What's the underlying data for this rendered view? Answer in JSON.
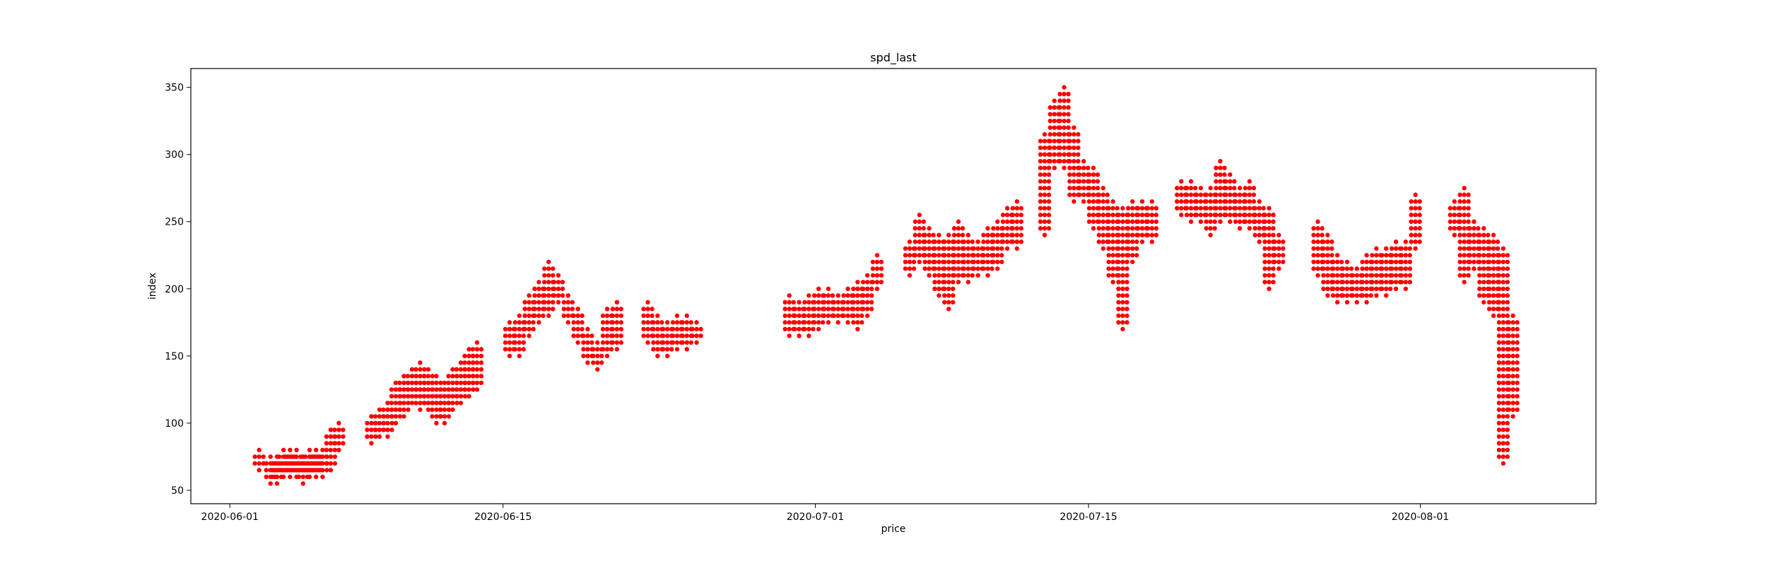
{
  "colors": {
    "marker": "#ff0000",
    "axes": "#000000",
    "background": "#ffffff"
  },
  "chart_data": {
    "type": "scatter",
    "title": "spd_last",
    "xlabel": "price",
    "ylabel": "index",
    "x_is_date": true,
    "xlim": [
      "2020-05-30",
      "2020-08-10"
    ],
    "ylim": [
      40,
      364
    ],
    "x_ticks": [
      "2020-06-01",
      "2020-06-15",
      "2020-07-01",
      "2020-07-15",
      "2020-08-01"
    ],
    "y_ticks": [
      50,
      100,
      150,
      200,
      250,
      300,
      350
    ],
    "x_tick_labels": [
      "2020-06-01",
      "2020-06-15",
      "2020-07-01",
      "2020-07-15",
      "2020-08-01"
    ],
    "y_tick_labels": [
      "50",
      "100",
      "150",
      "200",
      "250",
      "300",
      "350"
    ],
    "grid": false,
    "legend": "none",
    "marker_color": "#ff0000",
    "series": [
      {
        "x": [
          "2020-06-02T12:00",
          "2020-06-03T02:00",
          "2020-06-03T10:00",
          "2020-06-03T18:00",
          "2020-06-04T02:00",
          "2020-06-04T10:00",
          "2020-06-04T18:00",
          "2020-06-05T02:00",
          "2020-06-05T10:00",
          "2020-06-05T18:00",
          "2020-06-06T04:00",
          "2020-06-06T14:00",
          "2020-06-08T06:00",
          "2020-06-08T16:00",
          "2020-06-09T02:00",
          "2020-06-09T12:00",
          "2020-06-09T22:00",
          "2020-06-10T08:00",
          "2020-06-10T18:00",
          "2020-06-11T04:00",
          "2020-06-11T14:00",
          "2020-06-12T00:00",
          "2020-06-12T10:00",
          "2020-06-12T20:00",
          "2020-06-13T06:00",
          "2020-06-13T16:00",
          "2020-06-15T08:00",
          "2020-06-15T20:00",
          "2020-06-16T08:00",
          "2020-06-16T20:00",
          "2020-06-17T08:00",
          "2020-06-17T20:00",
          "2020-06-18T08:00",
          "2020-06-18T20:00",
          "2020-06-19T08:00",
          "2020-06-19T20:00",
          "2020-06-20T08:00",
          "2020-06-20T20:00",
          "2020-06-22T10:00",
          "2020-06-22T22:00",
          "2020-06-23T10:00",
          "2020-06-23T22:00",
          "2020-06-24T10:00",
          "2020-06-24T22:00",
          "2020-06-29T16:00",
          "2020-06-30T04:00",
          "2020-06-30T16:00",
          "2020-07-01T04:00",
          "2020-07-01T16:00",
          "2020-07-02T04:00",
          "2020-07-02T16:00",
          "2020-07-03T04:00",
          "2020-07-03T16:00",
          "2020-07-04T04:00",
          "2020-07-05T20:00",
          "2020-07-06T08:00",
          "2020-07-06T20:00",
          "2020-07-07T08:00",
          "2020-07-07T20:00",
          "2020-07-08T08:00",
          "2020-07-08T20:00",
          "2020-07-09T08:00",
          "2020-07-09T20:00",
          "2020-07-10T08:00",
          "2020-07-10T20:00",
          "2020-07-11T08:00",
          "2020-07-12T18:00",
          "2020-07-13T06:00",
          "2020-07-13T18:00",
          "2020-07-14T06:00",
          "2020-07-14T18:00",
          "2020-07-15T06:00",
          "2020-07-15T18:00",
          "2020-07-16T06:00",
          "2020-07-16T18:00",
          "2020-07-17T06:00",
          "2020-07-17T18:00",
          "2020-07-18T06:00",
          "2020-07-19T18:00",
          "2020-07-20T06:00",
          "2020-07-20T18:00",
          "2020-07-21T06:00",
          "2020-07-21T18:00",
          "2020-07-22T06:00",
          "2020-07-22T18:00",
          "2020-07-23T06:00",
          "2020-07-23T18:00",
          "2020-07-24T06:00",
          "2020-07-24T18:00",
          "2020-07-26T18:00",
          "2020-07-27T06:00",
          "2020-07-27T18:00",
          "2020-07-28T06:00",
          "2020-07-28T18:00",
          "2020-07-29T06:00",
          "2020-07-29T18:00",
          "2020-07-30T06:00",
          "2020-07-30T18:00",
          "2020-07-31T06:00",
          "2020-07-31T18:00",
          "2020-08-02T18:00",
          "2020-08-03T06:00",
          "2020-08-03T18:00",
          "2020-08-04T06:00",
          "2020-08-04T18:00",
          "2020-08-05T06:00",
          "2020-08-05T18:00"
        ],
        "y": [
          70,
          65,
          62,
          68,
          66,
          70,
          68,
          66,
          70,
          68,
          75,
          85,
          95,
          100,
          100,
          115,
          120,
          125,
          125,
          120,
          115,
          120,
          125,
          130,
          140,
          145,
          160,
          165,
          175,
          190,
          205,
          200,
          180,
          170,
          160,
          150,
          165,
          175,
          175,
          165,
          160,
          165,
          165,
          170,
          180,
          175,
          180,
          190,
          185,
          185,
          180,
          185,
          195,
          205,
          220,
          235,
          225,
          215,
          205,
          225,
          220,
          220,
          225,
          230,
          240,
          245,
          290,
          310,
          300,
          280,
          280,
          270,
          250,
          240,
          245,
          245,
          250,
          250,
          270,
          265,
          265,
          260,
          270,
          265,
          255,
          255,
          245,
          235,
          225,
          230,
          215,
          205,
          200,
          200,
          205,
          210,
          210,
          215,
          220,
          245,
          250,
          235,
          225,
          215,
          200,
          140,
          120
        ],
        "y_low": [
          65,
          55,
          55,
          60,
          60,
          60,
          55,
          60,
          60,
          60,
          65,
          80,
          85,
          90,
          90,
          100,
          105,
          115,
          110,
          110,
          100,
          100,
          110,
          115,
          120,
          125,
          150,
          150,
          165,
          175,
          180,
          190,
          175,
          160,
          145,
          140,
          150,
          155,
          160,
          150,
          150,
          155,
          155,
          160,
          165,
          165,
          165,
          170,
          175,
          175,
          175,
          170,
          180,
          200,
          210,
          220,
          210,
          195,
          185,
          205,
          205,
          210,
          210,
          215,
          230,
          230,
          240,
          290,
          290,
          265,
          265,
          245,
          230,
          205,
          170,
          220,
          235,
          235,
          255,
          250,
          250,
          240,
          250,
          250,
          245,
          245,
          235,
          200,
          215,
          210,
          195,
          190,
          190,
          190,
          190,
          195,
          195,
          200,
          200,
          230,
          240,
          205,
          215,
          190,
          180,
          70,
          105
        ],
        "y_high": [
          80,
          75,
          75,
          80,
          80,
          80,
          75,
          80,
          80,
          80,
          95,
          100,
          105,
          110,
          115,
          130,
          135,
          140,
          145,
          140,
          135,
          130,
          140,
          145,
          155,
          160,
          175,
          180,
          195,
          205,
          220,
          210,
          195,
          185,
          170,
          160,
          185,
          190,
          190,
          180,
          175,
          180,
          180,
          175,
          195,
          190,
          195,
          200,
          200,
          195,
          200,
          205,
          210,
          225,
          235,
          255,
          245,
          240,
          240,
          250,
          240,
          235,
          245,
          250,
          260,
          265,
          315,
          340,
          350,
          320,
          295,
          290,
          275,
          265,
          260,
          265,
          265,
          265,
          280,
          280,
          275,
          275,
          295,
          285,
          275,
          280,
          265,
          260,
          240,
          250,
          240,
          225,
          220,
          215,
          225,
          230,
          230,
          235,
          235,
          270,
          265,
          275,
          250,
          245,
          240,
          230,
          180
        ]
      }
    ]
  }
}
